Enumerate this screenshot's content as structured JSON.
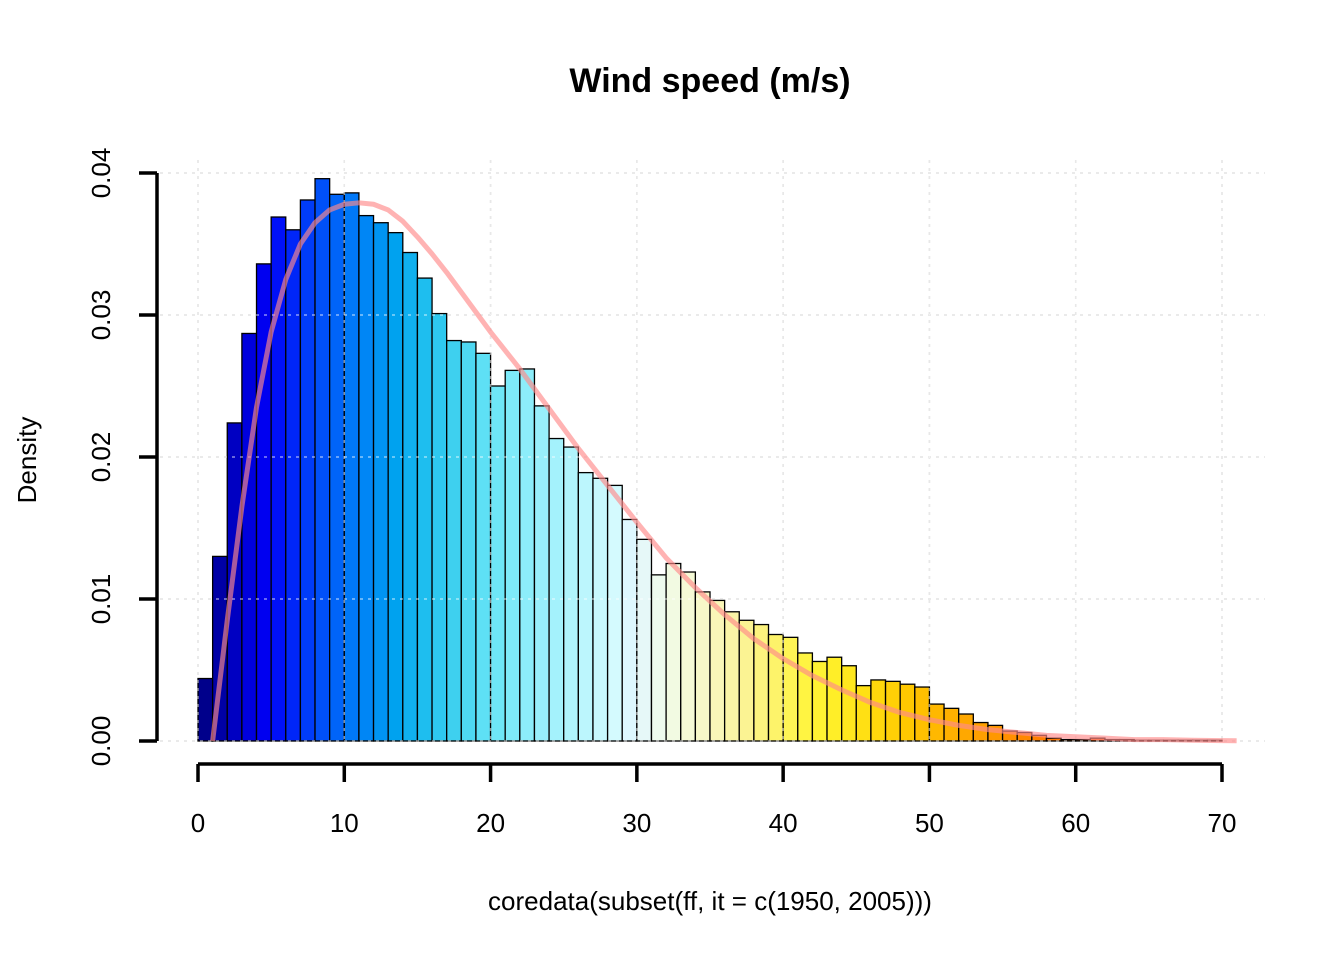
{
  "chart_data": {
    "type": "bar",
    "subtype": "histogram",
    "title": "Wind speed  (m/s)",
    "xlabel": "coredata(subset(ff, it = c(1950, 2005)))",
    "ylabel": "Density",
    "xlim": [
      0,
      71
    ],
    "ylim": [
      0,
      0.04
    ],
    "x_ticks": [
      "0",
      "10",
      "20",
      "30",
      "40",
      "50",
      "60",
      "70"
    ],
    "y_ticks": [
      "0.00",
      "0.01",
      "0.02",
      "0.03",
      "0.04"
    ],
    "grid": true,
    "bin_width": 1,
    "bin_start": 0,
    "values": [
      0.0044,
      0.013,
      0.0224,
      0.0287,
      0.0336,
      0.0369,
      0.036,
      0.0381,
      0.0396,
      0.0385,
      0.0386,
      0.037,
      0.0365,
      0.0358,
      0.0344,
      0.0326,
      0.0301,
      0.0282,
      0.0281,
      0.0273,
      0.025,
      0.0261,
      0.0262,
      0.0236,
      0.0213,
      0.0207,
      0.0189,
      0.0185,
      0.018,
      0.0156,
      0.0142,
      0.0117,
      0.0125,
      0.0119,
      0.0105,
      0.0099,
      0.0091,
      0.0085,
      0.0082,
      0.0075,
      0.0073,
      0.0062,
      0.0056,
      0.0059,
      0.0053,
      0.0039,
      0.0043,
      0.0042,
      0.004,
      0.0038,
      0.0026,
      0.0023,
      0.0019,
      0.0013,
      0.0011,
      0.0007,
      0.0006,
      0.0004,
      0.0002,
      0.0001,
      0.0001,
      0.0002,
      0.0001,
      0.0001,
      5e-05,
      5e-05,
      5e-05,
      5e-05,
      5e-05,
      5e-05
    ],
    "bar_colors": [
      "#00008b",
      "#0000a6",
      "#0000c2",
      "#0000dd",
      "#0000f0",
      "#0010f8",
      "#0026f8",
      "#003cf8",
      "#0050f8",
      "#0064f8",
      "#0078f8",
      "#0086f5",
      "#0094f2",
      "#00a2ef",
      "#10b0ef",
      "#1ebeef",
      "#2ec8ef",
      "#3ed0ef",
      "#4ed8f2",
      "#5ee0f5",
      "#6ee6f7",
      "#7eeaf9",
      "#8cedfa",
      "#98effb",
      "#a4f2fc",
      "#b0f4fc",
      "#bcf6fd",
      "#c8f8fd",
      "#d4fafe",
      "#def8ff",
      "#e6f8f8",
      "#eefaee",
      "#f2fae2",
      "#f5fad6",
      "#f7f8c8",
      "#f9f6b8",
      "#faf4a6",
      "#fbf393",
      "#fcf37e",
      "#fdf36a",
      "#fef455",
      "#fff442",
      "#fff233",
      "#ffee28",
      "#ffe81e",
      "#ffe014",
      "#ffd80c",
      "#ffd006",
      "#ffc800",
      "#ffc000",
      "#ffb800",
      "#ffb000",
      "#ffa800",
      "#ffa000",
      "#ff9800",
      "#ff9000",
      "#ff8800",
      "#ff8000",
      "#ff7800",
      "#ff7000",
      "#ff6800",
      "#ff6000",
      "#ff5800",
      "#ff5000",
      "#ff4800",
      "#ff4000",
      "#ff3800",
      "#ff3000",
      "#ff2800",
      "#ff2000"
    ],
    "fit_curve": {
      "x": [
        1,
        2,
        3,
        4,
        5,
        6,
        7,
        8,
        9,
        10,
        11,
        12,
        13,
        14,
        15,
        16,
        17,
        18,
        19,
        20,
        22,
        24,
        26,
        28,
        30,
        32,
        34,
        36,
        38,
        40,
        42,
        44,
        46,
        48,
        50,
        52,
        54,
        56,
        58,
        60,
        62,
        64,
        66,
        68,
        70,
        71
      ],
      "y": [
        0.0,
        0.0085,
        0.0165,
        0.0235,
        0.0288,
        0.0325,
        0.035,
        0.0365,
        0.0374,
        0.0378,
        0.0379,
        0.0378,
        0.0374,
        0.0366,
        0.0355,
        0.0343,
        0.033,
        0.0316,
        0.0302,
        0.0288,
        0.0262,
        0.0234,
        0.0206,
        0.018,
        0.0154,
        0.0129,
        0.0108,
        0.0089,
        0.0072,
        0.0058,
        0.0046,
        0.0036,
        0.0027,
        0.002,
        0.0015,
        0.0011,
        0.0008,
        0.0006,
        0.0004,
        0.0003,
        0.0002,
        0.0001,
        0.0001,
        5e-05,
        3e-05,
        2e-05
      ],
      "color": "#ff8a8a"
    }
  }
}
